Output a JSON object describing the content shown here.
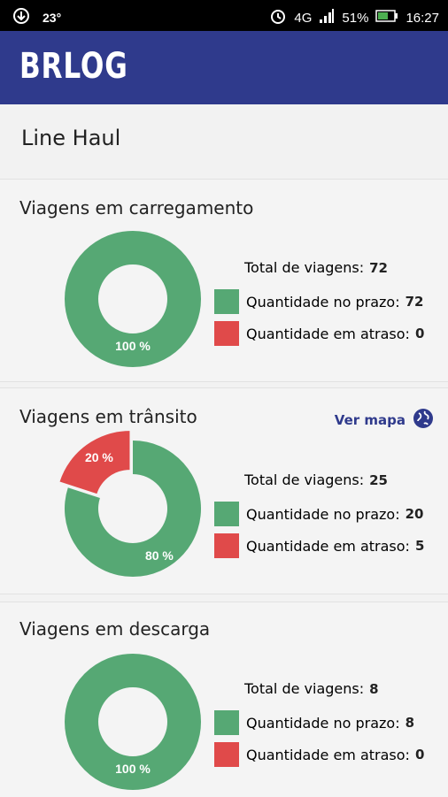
{
  "status_bar": {
    "temperature": "23°",
    "network": "4G",
    "battery": "51%",
    "time": "16:27",
    "icons": [
      "download-icon",
      "alarm-icon",
      "signal-icon",
      "battery-icon"
    ]
  },
  "app": {
    "brand": "BRLOG"
  },
  "page": {
    "title": "Line Haul"
  },
  "labels": {
    "total": "Total de viagens:",
    "on_time": "Quantidade no prazo:",
    "late": "Quantidade em atraso:"
  },
  "colors": {
    "on_time": "#56a874",
    "late": "#e04a4a",
    "brand": "#2f3a8c"
  },
  "cards": [
    {
      "title": "Viagens em carregamento",
      "total": "72",
      "on_time": "72",
      "late": "0",
      "on_time_pct_label": "100 %",
      "late_pct_label": ""
    },
    {
      "title": "Viagens em trânsito",
      "total": "25",
      "on_time": "20",
      "late": "5",
      "on_time_pct_label": "80 %",
      "late_pct_label": "20 %",
      "link": "Ver mapa"
    },
    {
      "title": "Viagens em descarga",
      "total": "8",
      "on_time": "8",
      "late": "0",
      "on_time_pct_label": "100 %",
      "late_pct_label": ""
    }
  ],
  "chart_data": [
    {
      "type": "pie",
      "categories": [
        "Quantidade no prazo",
        "Quantidade em atraso"
      ],
      "values": [
        72,
        0
      ]
    },
    {
      "type": "pie",
      "categories": [
        "Quantidade no prazo",
        "Quantidade em atraso"
      ],
      "values": [
        20,
        5
      ]
    },
    {
      "type": "pie",
      "categories": [
        "Quantidade no prazo",
        "Quantidade em atraso"
      ],
      "values": [
        8,
        0
      ]
    }
  ]
}
